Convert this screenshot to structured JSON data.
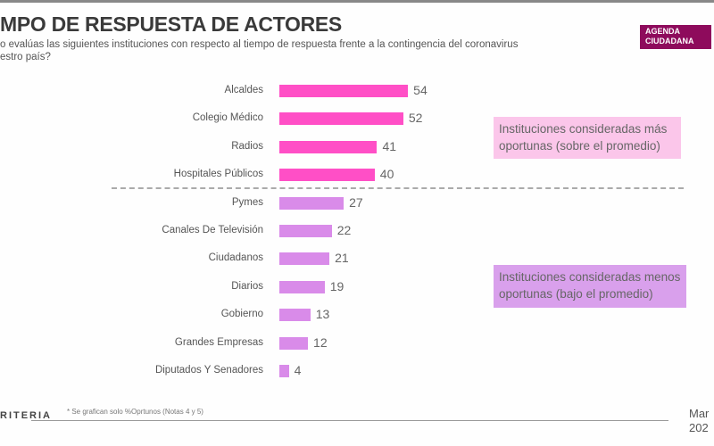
{
  "header": {
    "title": "MPO DE RESPUESTA DE ACTORES",
    "subtitle_line1": "o evalúas las siguientes instituciones con respecto al tiempo de respuesta frente a la contingencia del coronavirus",
    "subtitle_line2": "estro país?",
    "badge": "AGENDA CIUDADANA",
    "badge_color": "#8e0b5c"
  },
  "chart_data": {
    "type": "bar",
    "orientation": "horizontal",
    "categories": [
      "Alcaldes",
      "Colegio Médico",
      "Radios",
      "Hospitales Públicos",
      "Pymes",
      "Canales De Televisión",
      "Ciudadanos",
      "Diarios",
      "Gobierno",
      "Grandes Empresas",
      "Diputados Y Senadores"
    ],
    "values": [
      54,
      52,
      41,
      40,
      27,
      22,
      21,
      19,
      13,
      12,
      4
    ],
    "group_colors": {
      "above": "#ff4fc6",
      "below": "#d98be9"
    },
    "groups": [
      "above",
      "above",
      "above",
      "above",
      "below",
      "below",
      "below",
      "below",
      "below",
      "below",
      "below"
    ],
    "annotations": [
      {
        "text": "Instituciones consideradas más oportunas (sobre el promedio)",
        "color": "#fbc6ea"
      },
      {
        "text": "Instituciones consideradas menos oportunas (bajo el promedio)",
        "color": "#d9a0ec"
      }
    ],
    "grid": false
  },
  "footer": {
    "brand": "RITERIA",
    "note": "* Se grafican solo %Oprtunos (Notas 4 y 5)",
    "date_line1": "Mar",
    "date_line2": "202"
  }
}
